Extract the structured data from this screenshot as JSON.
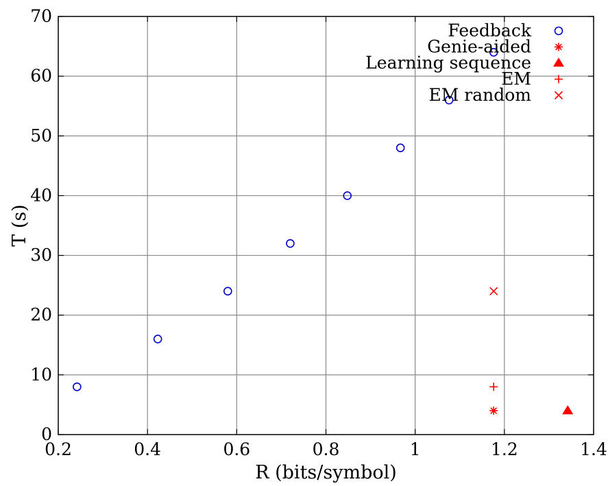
{
  "chart_data": {
    "type": "scatter",
    "xlabel": "R (bits/symbol)",
    "ylabel": "T (s)",
    "xlim": [
      0.2,
      1.4
    ],
    "ylim": [
      0,
      70
    ],
    "xticks": [
      0.2,
      0.4,
      0.6,
      0.8,
      1.0,
      1.2,
      1.4
    ],
    "xtick_labels": [
      "0.2",
      "0.4",
      "0.6",
      "0.8",
      "1",
      "1.2",
      "1.4"
    ],
    "yticks": [
      0,
      10,
      20,
      30,
      40,
      50,
      60,
      70
    ],
    "ytick_labels": [
      "0",
      "10",
      "20",
      "30",
      "40",
      "50",
      "60",
      "70"
    ],
    "grid": true,
    "legend_position": "top-right",
    "series": [
      {
        "name": "Feedback",
        "marker": "circle-open",
        "color": "#0000cc",
        "points": [
          [
            0.242,
            8
          ],
          [
            0.423,
            16
          ],
          [
            0.58,
            24
          ],
          [
            0.72,
            32
          ],
          [
            0.848,
            40
          ],
          [
            0.967,
            48
          ],
          [
            1.076,
            56
          ],
          [
            1.176,
            64
          ]
        ]
      },
      {
        "name": "Genie-aided",
        "marker": "asterisk",
        "color": "#ff0000",
        "points": [
          [
            1.176,
            4
          ]
        ]
      },
      {
        "name": "Learning sequence",
        "marker": "triangle-filled",
        "color": "#ff0000",
        "points": [
          [
            1.342,
            4
          ]
        ]
      },
      {
        "name": "EM",
        "marker": "plus",
        "color": "#ff0000",
        "points": [
          [
            1.176,
            8
          ]
        ]
      },
      {
        "name": "EM random",
        "marker": "cross",
        "color": "#ff0000",
        "points": [
          [
            1.176,
            24
          ]
        ]
      }
    ]
  }
}
